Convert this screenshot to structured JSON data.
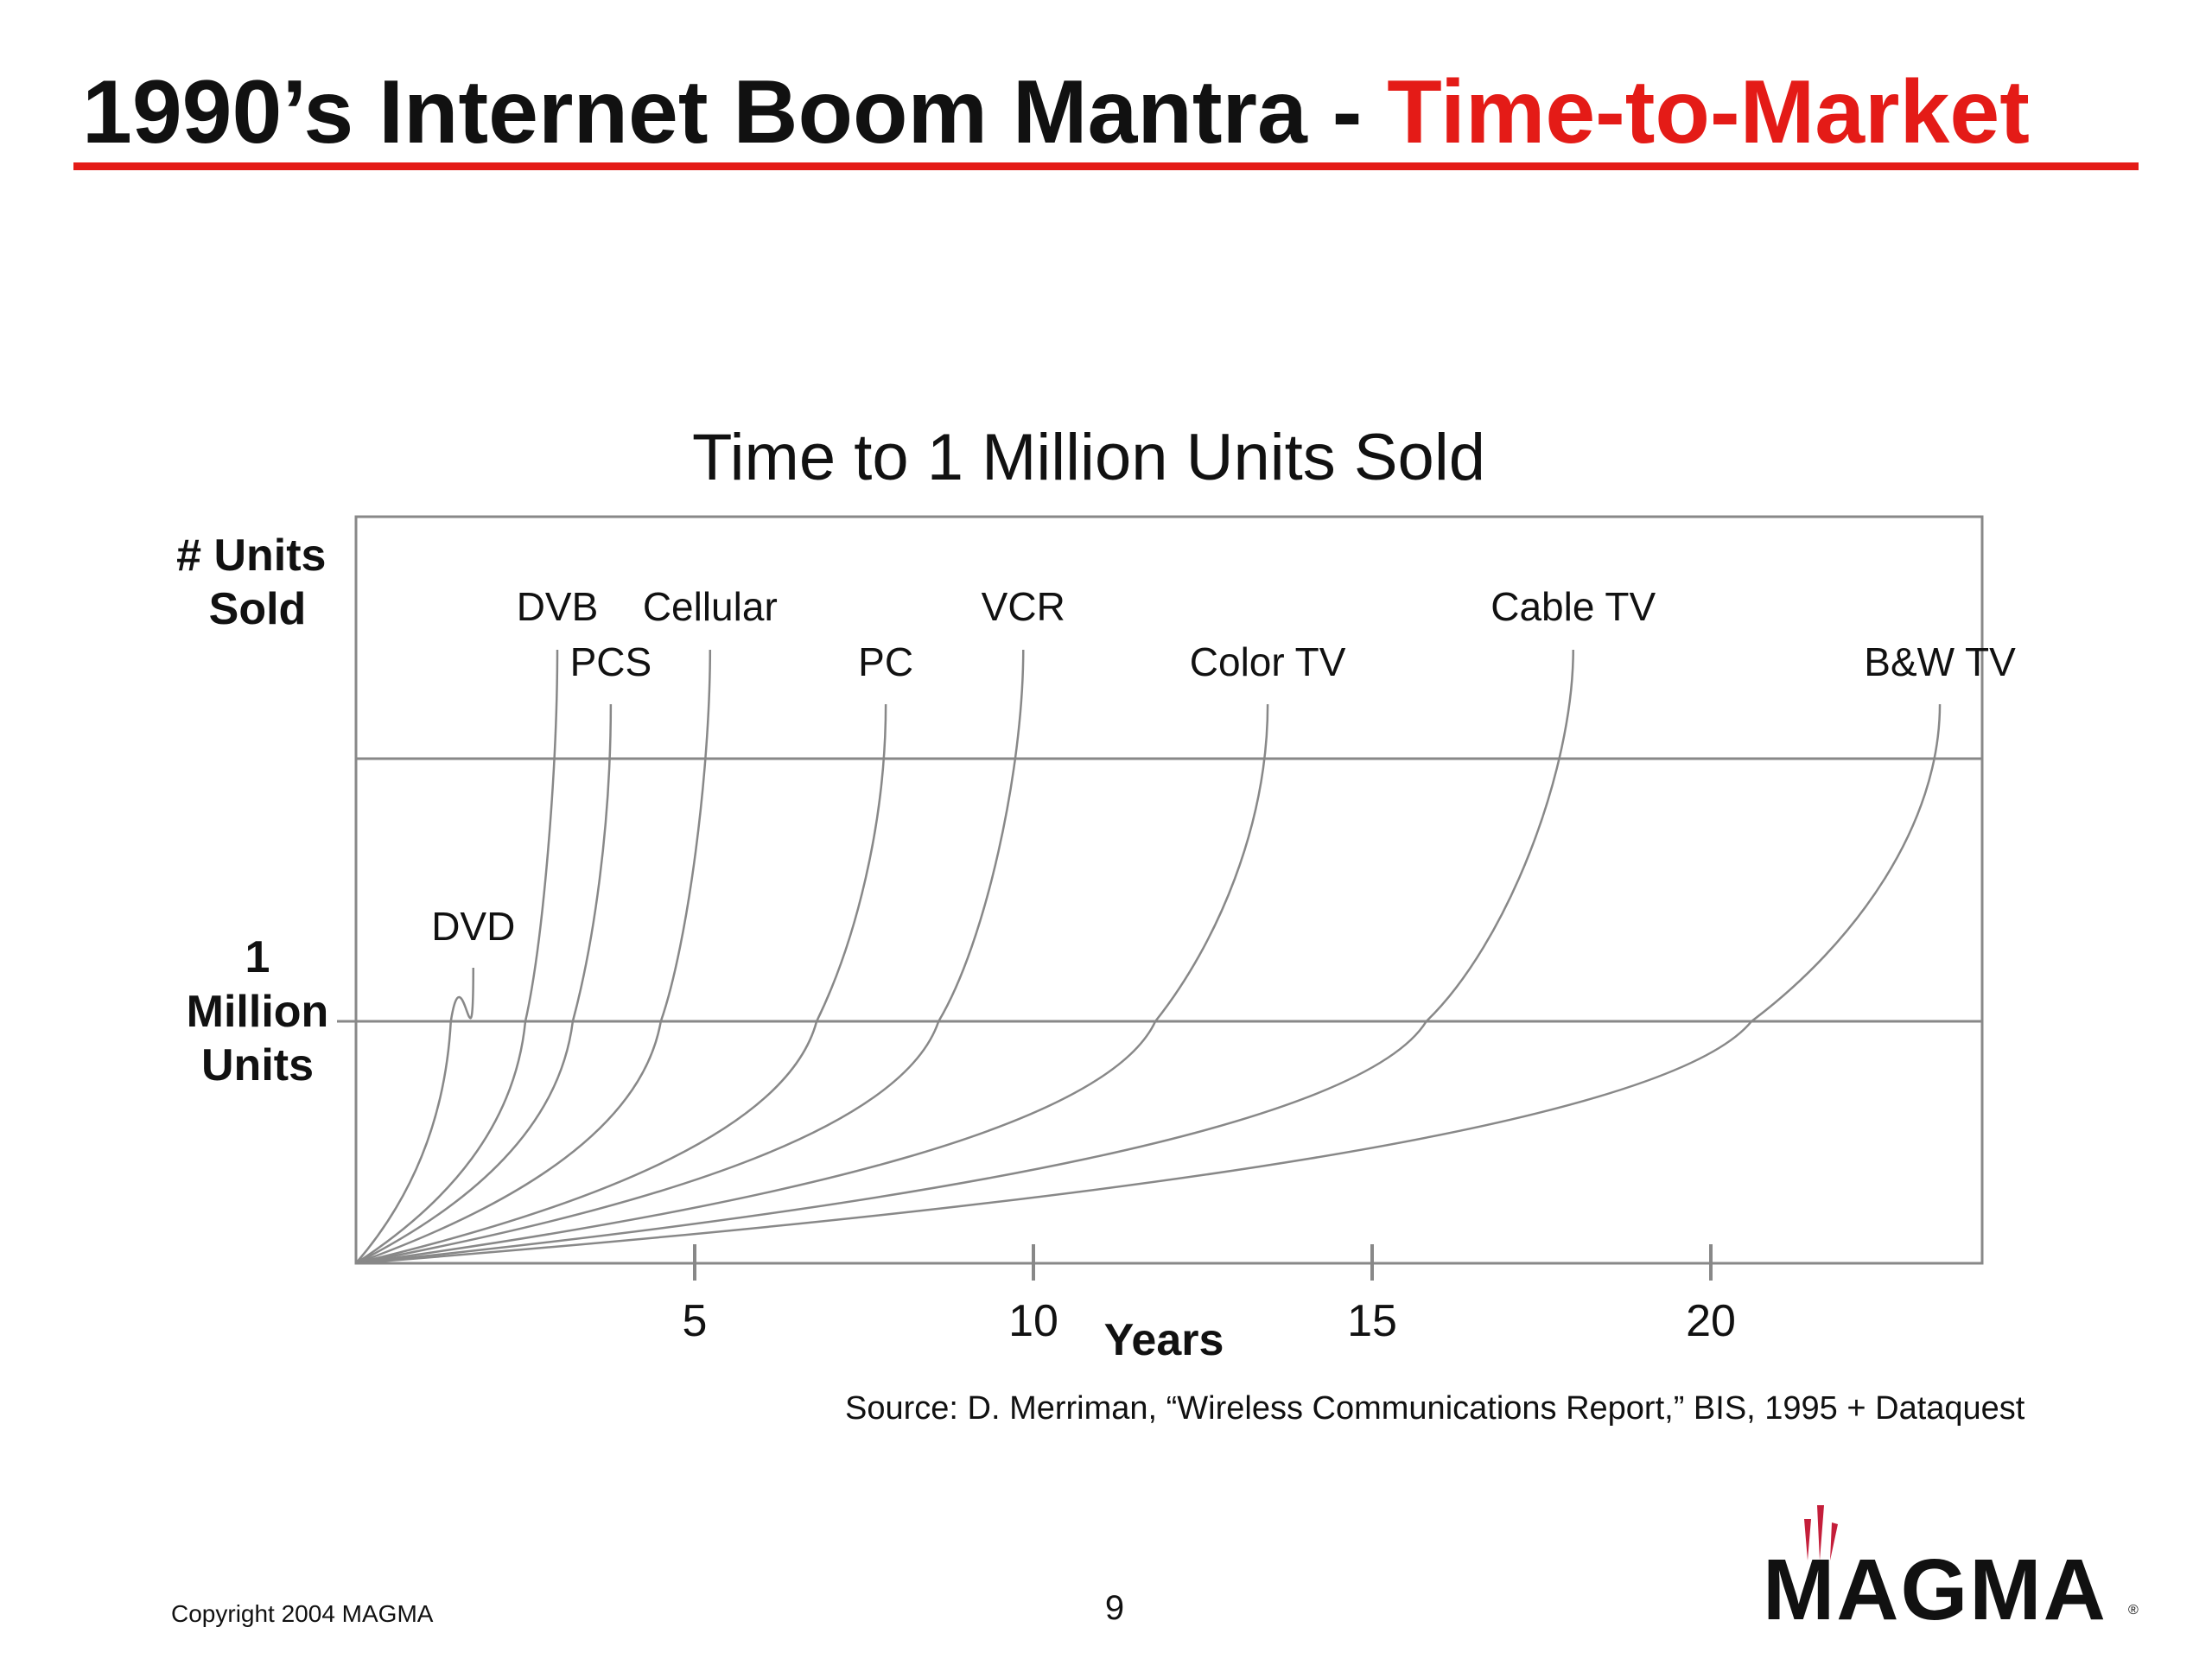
{
  "slide": {
    "title_main": "1990’s Internet Boom Mantra - ",
    "title_accent": "Time-to-Market",
    "copyright": "Copyright 2004 MAGMA",
    "page_number": "9",
    "logo_text": "MAGMA",
    "accent_color": "#e41b17"
  },
  "chart_data": {
    "type": "line",
    "title": "Time to 1 Million Units Sold",
    "xlabel": "Years",
    "ylabel": "# Units Sold",
    "xlim": [
      0,
      24
    ],
    "x_ticks": [
      5,
      10,
      15,
      20
    ],
    "x_tick_labels": [
      "5",
      "10",
      "15",
      "20"
    ],
    "y_reference_line": {
      "label": "1 Million Units",
      "label_lines": [
        "1",
        "Million",
        "Units"
      ]
    },
    "source": "Source: D. Merriman, “Wireless Communications Report,” BIS, 1995 + Dataquest",
    "line_color": "#888888",
    "series": [
      {
        "name": "DVD",
        "years_to_1_million": 1.4
      },
      {
        "name": "DVB",
        "years_to_1_million": 2.5
      },
      {
        "name": "PCS",
        "years_to_1_million": 3.2
      },
      {
        "name": "Cellular",
        "years_to_1_million": 4.5
      },
      {
        "name": "PC",
        "years_to_1_million": 6.8
      },
      {
        "name": "VCR",
        "years_to_1_million": 8.6
      },
      {
        "name": "Color TV",
        "years_to_1_million": 11.8
      },
      {
        "name": "Cable TV",
        "years_to_1_million": 15.8
      },
      {
        "name": "B&W TV",
        "years_to_1_million": 20.6
      }
    ]
  }
}
